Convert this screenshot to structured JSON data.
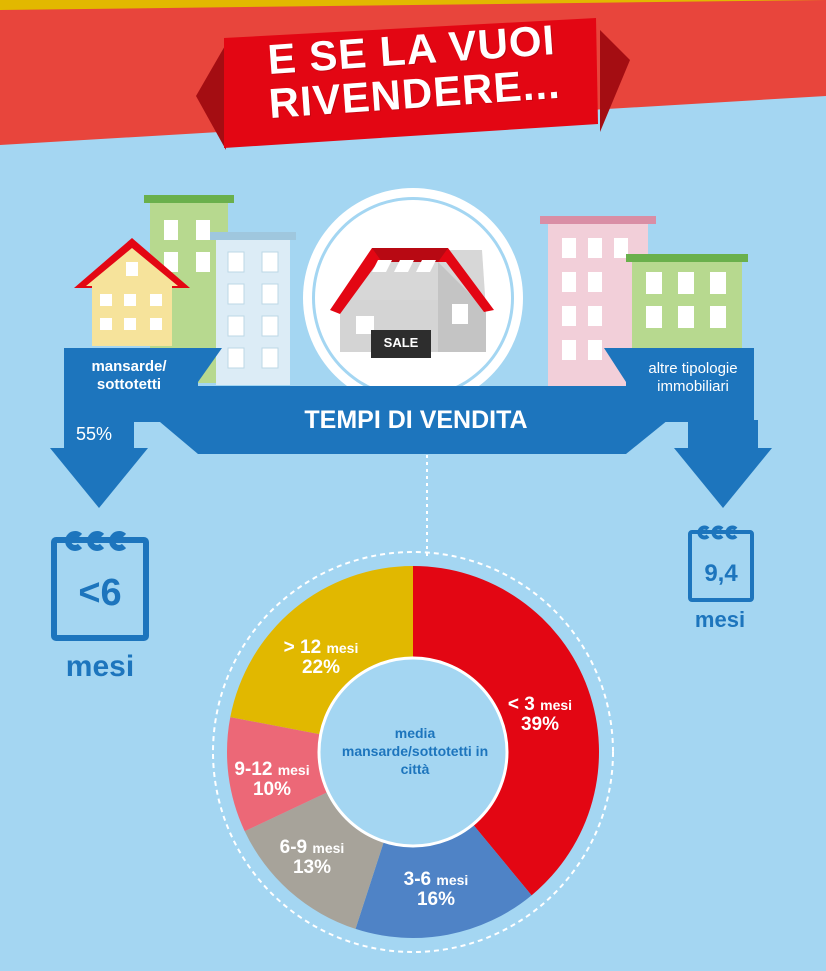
{
  "header": {
    "line1": "E SE LA VUOI",
    "line2": "RIVENDERE..."
  },
  "band": {
    "title": "TEMPI DI VENDITA",
    "left_label": "mansarde/ sottotetti",
    "left_percent": "55%",
    "right_label": "altre tipologie immobiliari"
  },
  "house_sign": "SALE",
  "left_stat": {
    "value": "<6",
    "unit": "mesi"
  },
  "right_stat": {
    "value": "9,4",
    "unit": "mesi"
  },
  "donut_center": "media mansarde/sottotetti in città",
  "colors": {
    "background": "#a4d6f2",
    "band": "#1d75bd",
    "ribbon": "#e30613",
    "ribbon_back": "#e8453c",
    "stripe_top": "#e2b800"
  },
  "chart_data": {
    "type": "pie",
    "title": "",
    "unit_label": "mesi",
    "slices": [
      {
        "range": "< 3",
        "unit": "mesi",
        "label": "39%",
        "value": 39,
        "color": "#e30613"
      },
      {
        "range": "3-6",
        "unit": "mesi",
        "label": "16%",
        "value": 16,
        "color": "#4f83c6"
      },
      {
        "range": "6-9",
        "unit": "mesi",
        "label": "13%",
        "value": 13,
        "color": "#a7a39a"
      },
      {
        "range": "9-12",
        "unit": "mesi",
        "label": "10%",
        "value": 10,
        "color": "#ec6877"
      },
      {
        "range": "> 12",
        "unit": "mesi",
        "label": "22%",
        "value": 22,
        "color": "#e1b800"
      }
    ]
  }
}
